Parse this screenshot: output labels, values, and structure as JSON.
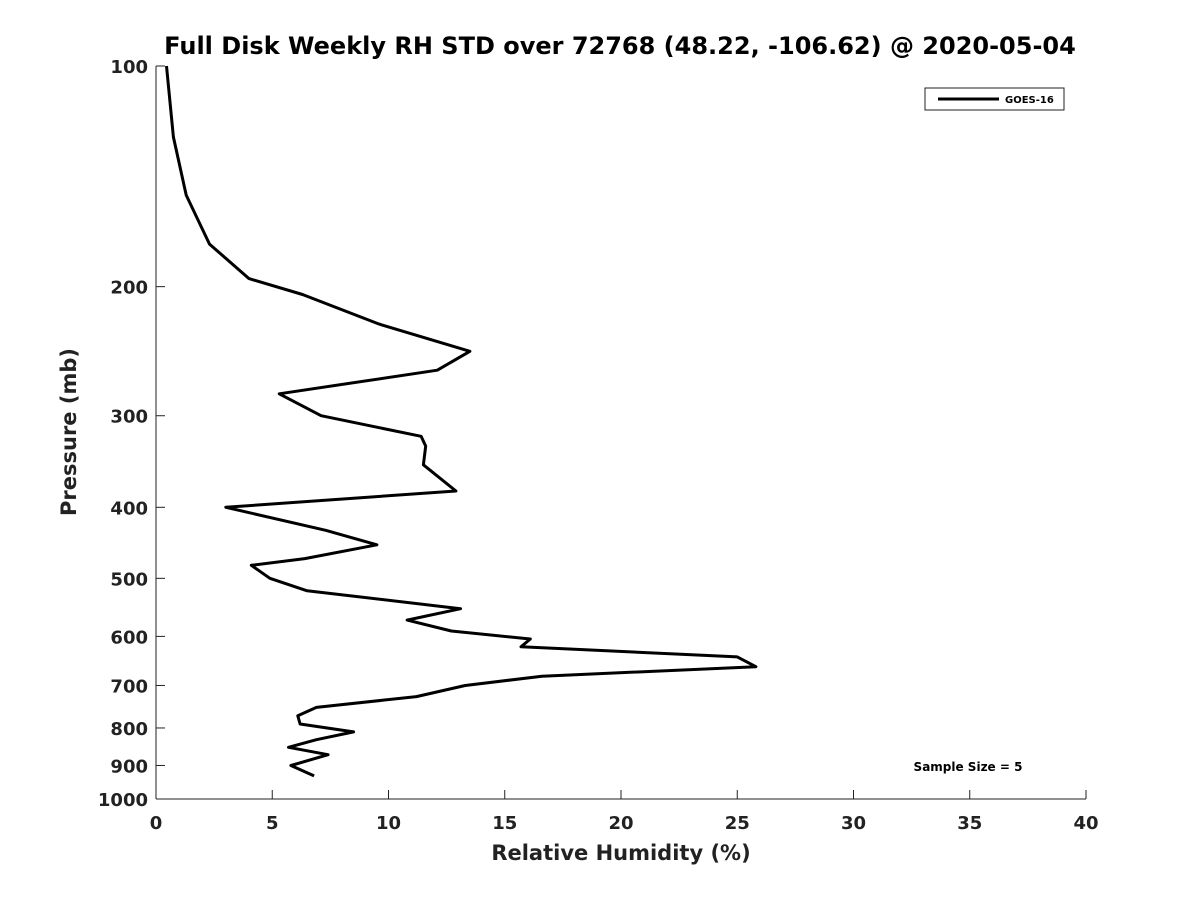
{
  "chart_data": {
    "type": "line",
    "title": "Full Disk Weekly RH STD over 72768 (48.22, -106.62) @ 2020-05-04",
    "xlabel": "Relative Humidity (%)",
    "ylabel": "Pressure (mb)",
    "xlim": [
      0,
      40
    ],
    "ylim": [
      1000,
      100
    ],
    "yscale": "log",
    "yaxis_reversed": true,
    "xticks": [
      0,
      5,
      10,
      15,
      20,
      25,
      30,
      35,
      40
    ],
    "yticks": [
      100,
      200,
      300,
      400,
      500,
      600,
      700,
      800,
      900,
      1000
    ],
    "grid": false,
    "legend_position": "top-right",
    "annotation": "Sample Size = 5",
    "series": [
      {
        "name": "GOES-16",
        "color": "#000000",
        "x": [
          0.45,
          0.75,
          1.3,
          2.3,
          4.0,
          6.3,
          9.6,
          13.5,
          12.1,
          5.3,
          7.1,
          11.4,
          11.6,
          11.5,
          12.9,
          3.0,
          7.3,
          9.5,
          6.4,
          4.1,
          4.9,
          6.5,
          13.1,
          10.8,
          12.7,
          16.1,
          15.7,
          25.0,
          25.8,
          16.6,
          13.3,
          11.2,
          6.9,
          6.1,
          6.2,
          8.5,
          6.9,
          5.7,
          7.4,
          5.8,
          6.8
        ],
        "y": [
          100,
          125,
          150,
          175,
          195,
          205,
          225,
          245,
          260,
          280,
          300,
          320,
          330,
          350,
          380,
          400,
          430,
          450,
          470,
          480,
          500,
          520,
          550,
          570,
          590,
          605,
          620,
          640,
          660,
          680,
          700,
          725,
          750,
          770,
          790,
          810,
          830,
          850,
          870,
          900,
          930
        ]
      }
    ]
  }
}
